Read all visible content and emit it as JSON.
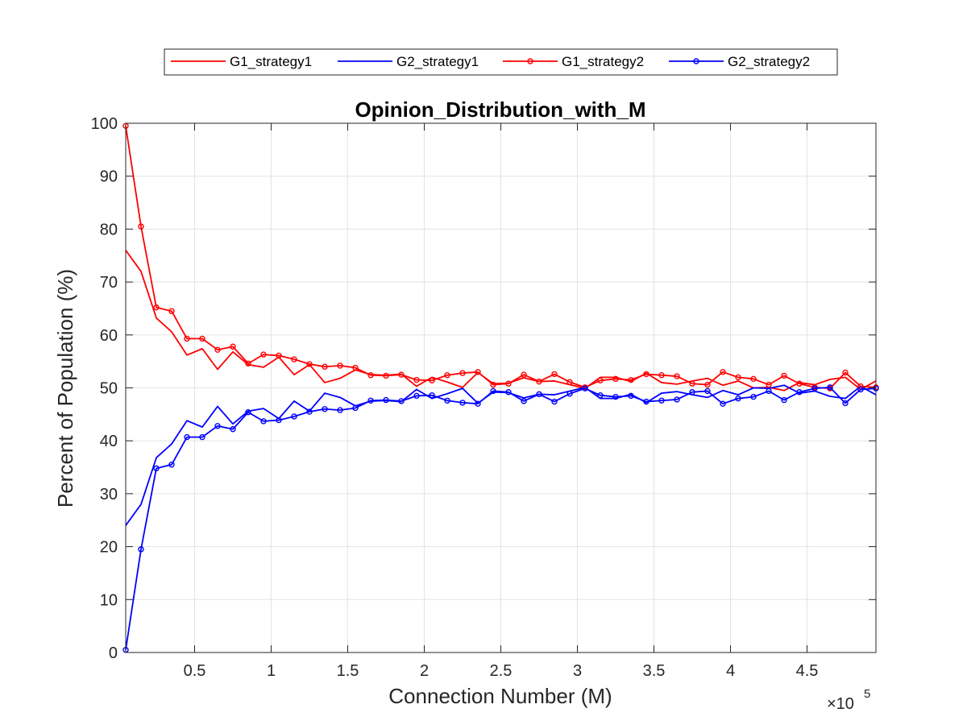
{
  "chart_data": {
    "type": "line",
    "title": "Opinion_Distribution_with_M",
    "xlabel": "Connection Number (M)",
    "ylabel": "Percent of Population (%)",
    "x_exponent_base": "×10",
    "x_exponent_power": "5",
    "xlim": [
      0.05,
      4.95
    ],
    "ylim": [
      0,
      100
    ],
    "grid": true,
    "legend_placement": "top-outside",
    "xticks": [
      0.5,
      1,
      1.5,
      2,
      2.5,
      3,
      3.5,
      4,
      4.5
    ],
    "xtick_labels": [
      "0.5",
      "1",
      "1.5",
      "2",
      "2.5",
      "3",
      "3.5",
      "4",
      "4.5"
    ],
    "yticks": [
      0,
      10,
      20,
      30,
      40,
      50,
      60,
      70,
      80,
      90,
      100
    ],
    "ytick_labels": [
      "0",
      "10",
      "20",
      "30",
      "40",
      "50",
      "60",
      "70",
      "80",
      "90",
      "100"
    ],
    "x": [
      0.05,
      0.15,
      0.25,
      0.35,
      0.45,
      0.55,
      0.65,
      0.75,
      0.85,
      0.95,
      1.05,
      1.15,
      1.25,
      1.35,
      1.45,
      1.55,
      1.65,
      1.75,
      1.85,
      1.95,
      2.05,
      2.15,
      2.25,
      2.35,
      2.45,
      2.55,
      2.65,
      2.75,
      2.85,
      2.95,
      3.05,
      3.15,
      3.25,
      3.35,
      3.45,
      3.55,
      3.65,
      3.75,
      3.85,
      3.95,
      4.05,
      4.15,
      4.25,
      4.35,
      4.45,
      4.55,
      4.65,
      4.75,
      4.85,
      4.95
    ],
    "series": [
      {
        "name": "G1_strategy1",
        "color": "#ff0000",
        "marker": false,
        "values": [
          76,
          72,
          63.2,
          60.6,
          56.2,
          57.4,
          53.5,
          56.8,
          54.4,
          53.9,
          55.8,
          52.5,
          54.4,
          51,
          51.8,
          53.4,
          52.5,
          52.4,
          52.6,
          50.3,
          52,
          51.1,
          50.1,
          52.9,
          50.8,
          50.9,
          51.9,
          51.2,
          51.3,
          50.6,
          49.9,
          52,
          52,
          51.2,
          52.8,
          51,
          50.7,
          51.3,
          51.8,
          50.5,
          51.3,
          50,
          50.1,
          49.5,
          51,
          50.6,
          51.6,
          52,
          49.7,
          51.3
        ]
      },
      {
        "name": "G2_strategy1",
        "color": "#0000ff",
        "marker": false,
        "values": [
          24,
          28,
          36.8,
          39.4,
          43.8,
          42.6,
          46.5,
          43.2,
          45.6,
          46.1,
          44.2,
          47.5,
          45.6,
          49,
          48.2,
          46.6,
          47.5,
          47.6,
          47.4,
          49.7,
          48,
          48.9,
          49.9,
          47.1,
          49.2,
          49.1,
          48.1,
          48.8,
          48.7,
          49.4,
          50.1,
          48,
          48,
          48.8,
          47.2,
          49,
          49.3,
          48.7,
          48.2,
          49.5,
          48.7,
          50,
          49.9,
          50.5,
          49,
          49.4,
          48.4,
          48,
          50.3,
          48.7
        ]
      },
      {
        "name": "G1_strategy2",
        "color": "#ff0000",
        "marker": true,
        "values": [
          99.5,
          80.5,
          65.2,
          64.5,
          59.3,
          59.3,
          57.2,
          57.8,
          54.6,
          56.3,
          56.1,
          55.4,
          54.5,
          54,
          54.2,
          53.8,
          52.4,
          52.3,
          52.5,
          51.5,
          51.4,
          52.4,
          52.8,
          53,
          50.6,
          50.8,
          52.5,
          51.2,
          52.6,
          51.1,
          50.1,
          51.4,
          51.7,
          51.5,
          52.6,
          52.4,
          52.2,
          50.8,
          50.6,
          53,
          52,
          51.7,
          50.6,
          52.3,
          50.8,
          50.1,
          49.9,
          52.9,
          50.3,
          50.1
        ]
      },
      {
        "name": "G2_strategy2",
        "color": "#0000ff",
        "marker": true,
        "values": [
          0.5,
          19.5,
          34.8,
          35.5,
          40.7,
          40.7,
          42.8,
          42.2,
          45.4,
          43.7,
          43.9,
          44.6,
          45.5,
          46,
          45.8,
          46.2,
          47.6,
          47.7,
          47.5,
          48.5,
          48.6,
          47.6,
          47.2,
          47,
          49.4,
          49.2,
          47.5,
          48.8,
          47.4,
          48.9,
          49.9,
          48.6,
          48.3,
          48.5,
          47.4,
          47.6,
          47.8,
          49.2,
          49.4,
          47,
          48,
          48.3,
          49.4,
          47.7,
          49.2,
          49.9,
          50.1,
          47.1,
          49.7,
          49.9
        ]
      }
    ]
  }
}
